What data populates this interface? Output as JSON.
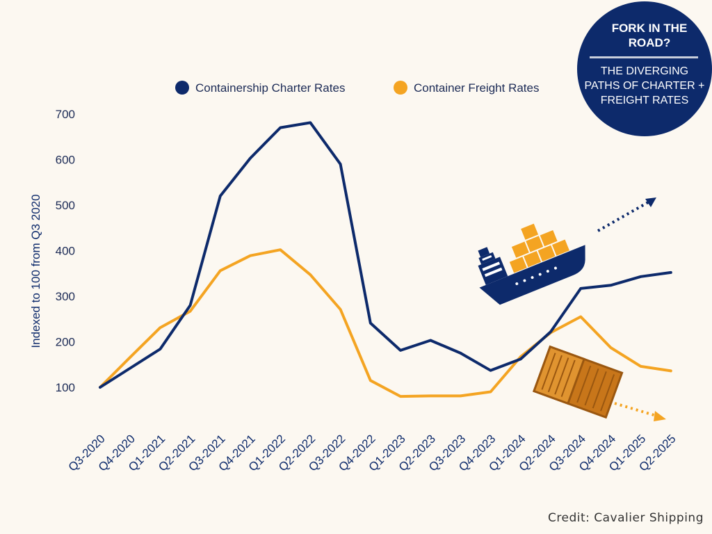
{
  "chart_data": {
    "type": "line",
    "ylabel": "Indexed to 100 from Q3 2020",
    "xlabel": "",
    "ylim": [
      100,
      700
    ],
    "yticks": [
      100,
      200,
      300,
      400,
      500,
      600,
      700
    ],
    "legend_position": "top",
    "grid": false,
    "categories": [
      "Q3-2020",
      "Q4-2020",
      "Q1-2021",
      "Q2-2021",
      "Q3-2021",
      "Q4-2021",
      "Q1-2022",
      "Q2-2022",
      "Q3-2022",
      "Q4-2022",
      "Q1-2023",
      "Q2-2023",
      "Q3-2023",
      "Q4-2023",
      "Q1-2024",
      "Q2-2024",
      "Q3-2024",
      "Q4-2024",
      "Q1-2025",
      "Q2-2025"
    ],
    "series": [
      {
        "name": "Containership Charter Rates",
        "color": "#0d2a6b",
        "values": [
          100,
          142,
          184,
          280,
          520,
          603,
          670,
          681,
          590,
          241,
          181,
          203,
          175,
          137,
          162,
          222,
          317,
          324,
          343,
          352
        ]
      },
      {
        "name": "Container Freight Rates",
        "color": "#f4a422",
        "values": [
          100,
          166,
          231,
          267,
          356,
          389,
          402,
          347,
          271,
          115,
          80,
          81,
          81,
          90,
          167,
          220,
          255,
          187,
          146,
          136
        ]
      }
    ]
  },
  "badge": {
    "title": "FORK IN THE ROAD?",
    "subtitle": "THE DIVERGING PATHS OF CHARTER + FREIGHT RATES"
  },
  "credit": "Credit: Cavalier Shipping",
  "icons": {
    "ship": "container-ship-icon",
    "box": "container-box-icon"
  }
}
